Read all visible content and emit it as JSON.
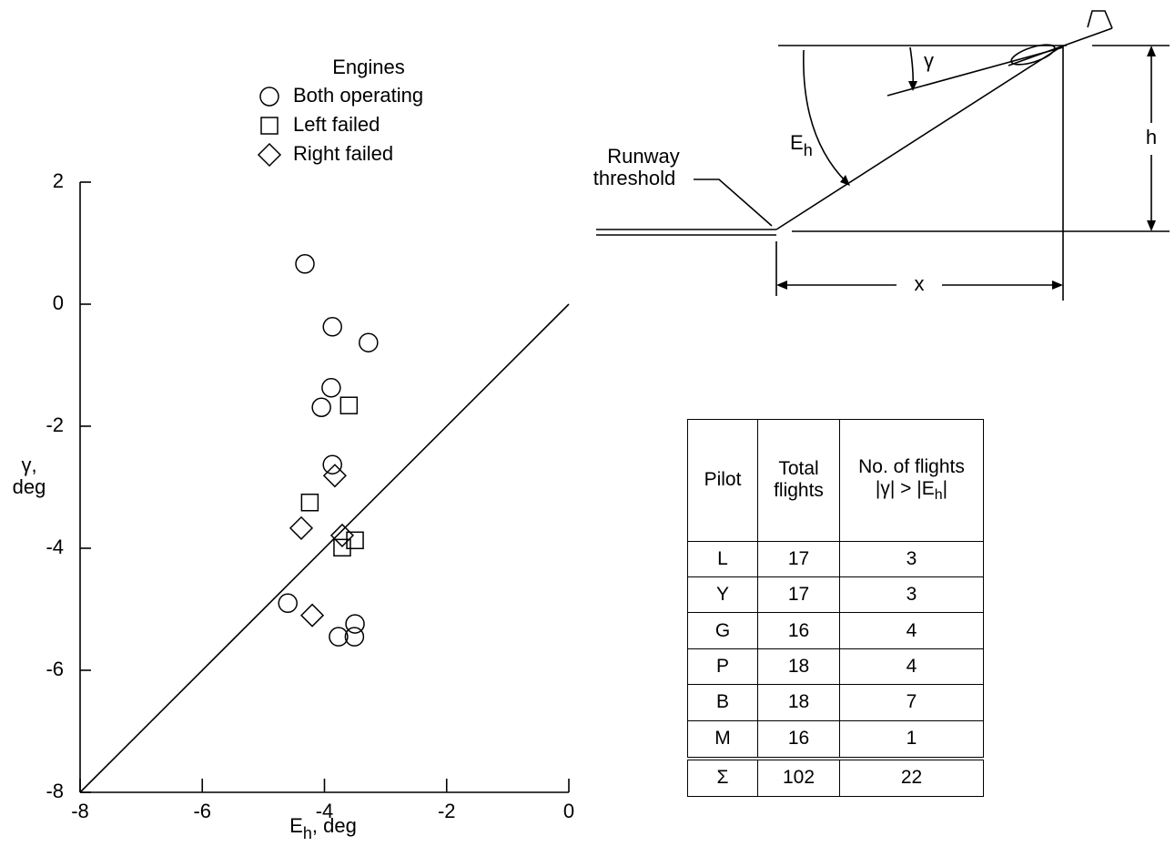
{
  "chart_data": {
    "type": "scatter",
    "legend_title": "Engines",
    "series": [
      {
        "name": "Both operating",
        "marker": "circle",
        "x": [
          -4.32,
          -3.87,
          -3.28,
          -3.89,
          -4.05,
          -3.87,
          -4.6,
          -3.5,
          -3.77,
          -3.51
        ],
        "y": [
          0.66,
          -0.37,
          -0.63,
          -1.37,
          -1.69,
          -2.63,
          -4.9,
          -5.24,
          -5.45,
          -5.45
        ]
      },
      {
        "name": "Left failed",
        "marker": "square",
        "x": [
          -3.6,
          -4.24,
          -3.5,
          -3.71
        ],
        "y": [
          -1.66,
          -3.25,
          -3.87,
          -3.99
        ]
      },
      {
        "name": "Right failed",
        "marker": "diamond",
        "x": [
          -3.83,
          -4.38,
          -3.71,
          -4.2
        ],
        "y": [
          -2.81,
          -3.67,
          -3.79,
          -5.1
        ]
      }
    ],
    "xlim": [
      -8,
      0
    ],
    "ylim": [
      -8,
      2
    ],
    "xticks": [
      -8,
      -6,
      -4,
      -2,
      0
    ],
    "yticks": [
      -8,
      -6,
      -4,
      -2,
      0,
      2
    ],
    "x_label": {
      "main": "E",
      "sub": "h",
      "rest": ", deg"
    },
    "y_label": [
      "γ,",
      "deg"
    ]
  },
  "diagram": {
    "gamma": "γ",
    "elevation": {
      "main": "E",
      "sub": "h"
    },
    "height": "h",
    "distance": "x",
    "runway": [
      "Runway",
      "threshold"
    ]
  },
  "table": {
    "header": {
      "pilot": "Pilot",
      "total": [
        "Total",
        "flights"
      ],
      "count": {
        "line1": "No. of flights",
        "line2": "|γ| > |E",
        "sub": "h",
        "end": "|"
      }
    },
    "rows": [
      [
        "L",
        17,
        3
      ],
      [
        "Y",
        17,
        3
      ],
      [
        "G",
        16,
        4
      ],
      [
        "P",
        18,
        4
      ],
      [
        "B",
        18,
        7
      ],
      [
        "M",
        16,
        1
      ]
    ],
    "total": [
      "Σ",
      102,
      22
    ]
  }
}
